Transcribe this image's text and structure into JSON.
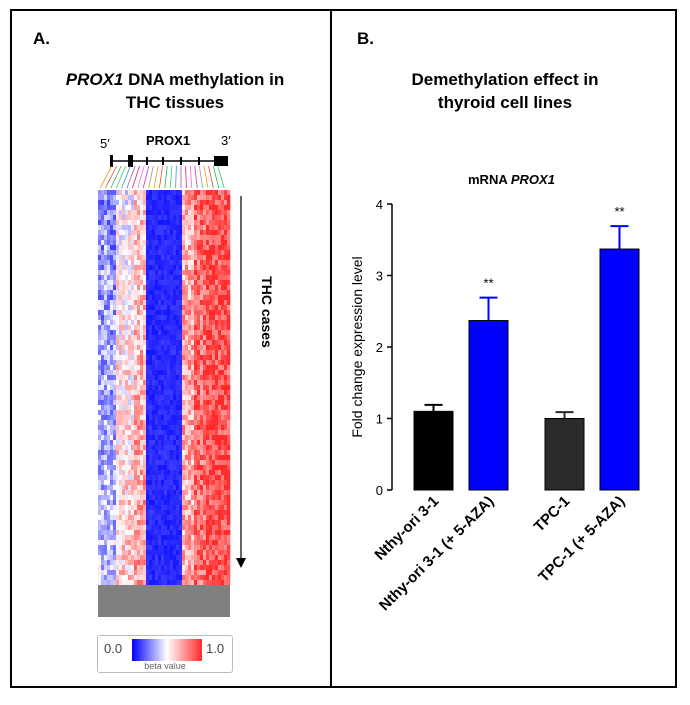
{
  "panel_a": {
    "letter": "A.",
    "title_italic": "PROX1",
    "title_rest": " DNA methylation in",
    "title_line2": "THC tissues",
    "gene_label": "PROX1",
    "five_prime": "5′",
    "three_prime": "3′",
    "cases_label": "THC cases",
    "heatmap_colors": {
      "low": "#0000ff",
      "mid": "#ffffff",
      "high": "#ff2a2a",
      "na": "#808080"
    },
    "legend": {
      "min": "0.0",
      "max": "1.0",
      "caption": "beta value"
    }
  },
  "panel_b": {
    "letter": "B.",
    "title_line1": "Demethylation effect in",
    "title_line2": "thyroid cell lines"
  },
  "chart_data": {
    "type": "bar",
    "title": "mRNA PROX1",
    "title_plain": "mRNA ",
    "title_italic": "PROX1",
    "ylabel": "Fold change expression level",
    "ylim": [
      0,
      4
    ],
    "yticks": [
      "0",
      "1",
      "2",
      "3",
      "4"
    ],
    "categories": [
      "Nthy-ori 3-1",
      "Nthy-ori 3-1 (+ 5-AZA)",
      "TPC-1",
      "TPC-1 (+ 5-AZA)"
    ],
    "values": [
      1.1,
      2.37,
      1.0,
      3.37
    ],
    "errors": [
      0.09,
      0.32,
      0.09,
      0.32
    ],
    "significance": [
      "",
      "**",
      "",
      "**"
    ],
    "colors": [
      "#000000",
      "#0000ff",
      "#2b2b2b",
      "#0000ff"
    ]
  }
}
